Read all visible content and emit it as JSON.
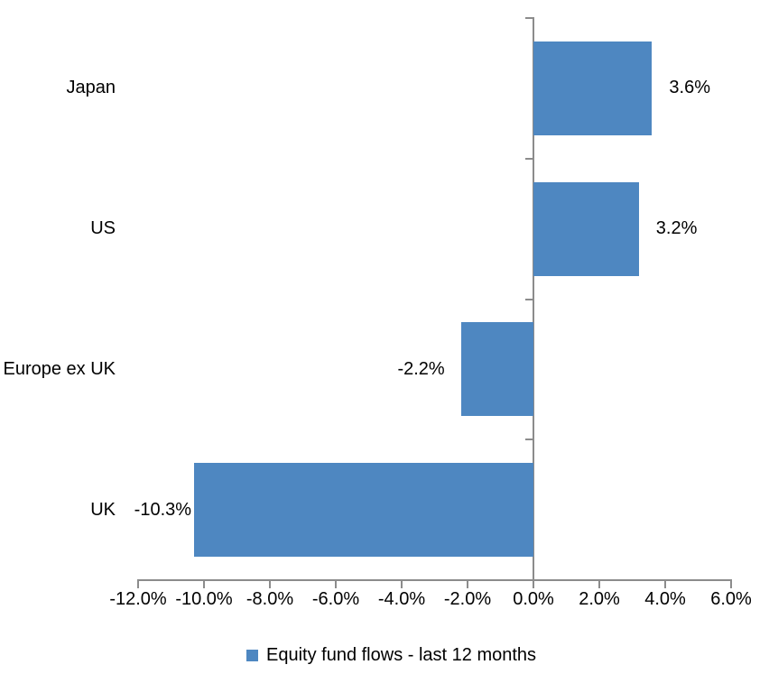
{
  "chart_data": {
    "type": "bar",
    "orientation": "horizontal",
    "title": "",
    "categories": [
      "Japan",
      "US",
      "Europe ex UK",
      "UK"
    ],
    "values": [
      3.6,
      3.2,
      -2.2,
      -10.3
    ],
    "data_labels": [
      "3.6%",
      "3.2%",
      "-2.2%",
      "-10.3%"
    ],
    "series": [
      {
        "name": "Equity fund flows - last 12 months",
        "values": [
          3.6,
          3.2,
          -2.2,
          -10.3
        ]
      }
    ],
    "xlim": [
      -12,
      6
    ],
    "x_tick_values": [
      -12,
      -10,
      -8,
      -6,
      -4,
      -2,
      0,
      2,
      4,
      6
    ],
    "x_tick_labels": [
      "-12.0%",
      "-10.0%",
      "-8.0%",
      "-6.0%",
      "-4.0%",
      "-2.0%",
      "0.0%",
      "2.0%",
      "4.0%",
      "6.0%"
    ],
    "grid": false,
    "legend_position": "bottom",
    "colors": {
      "bar": "#4E87C1",
      "axis": "#8C8C8C",
      "text": "#000000",
      "background": "#FFFFFF"
    }
  },
  "legend": {
    "label": "Equity fund flows - last 12 months"
  }
}
